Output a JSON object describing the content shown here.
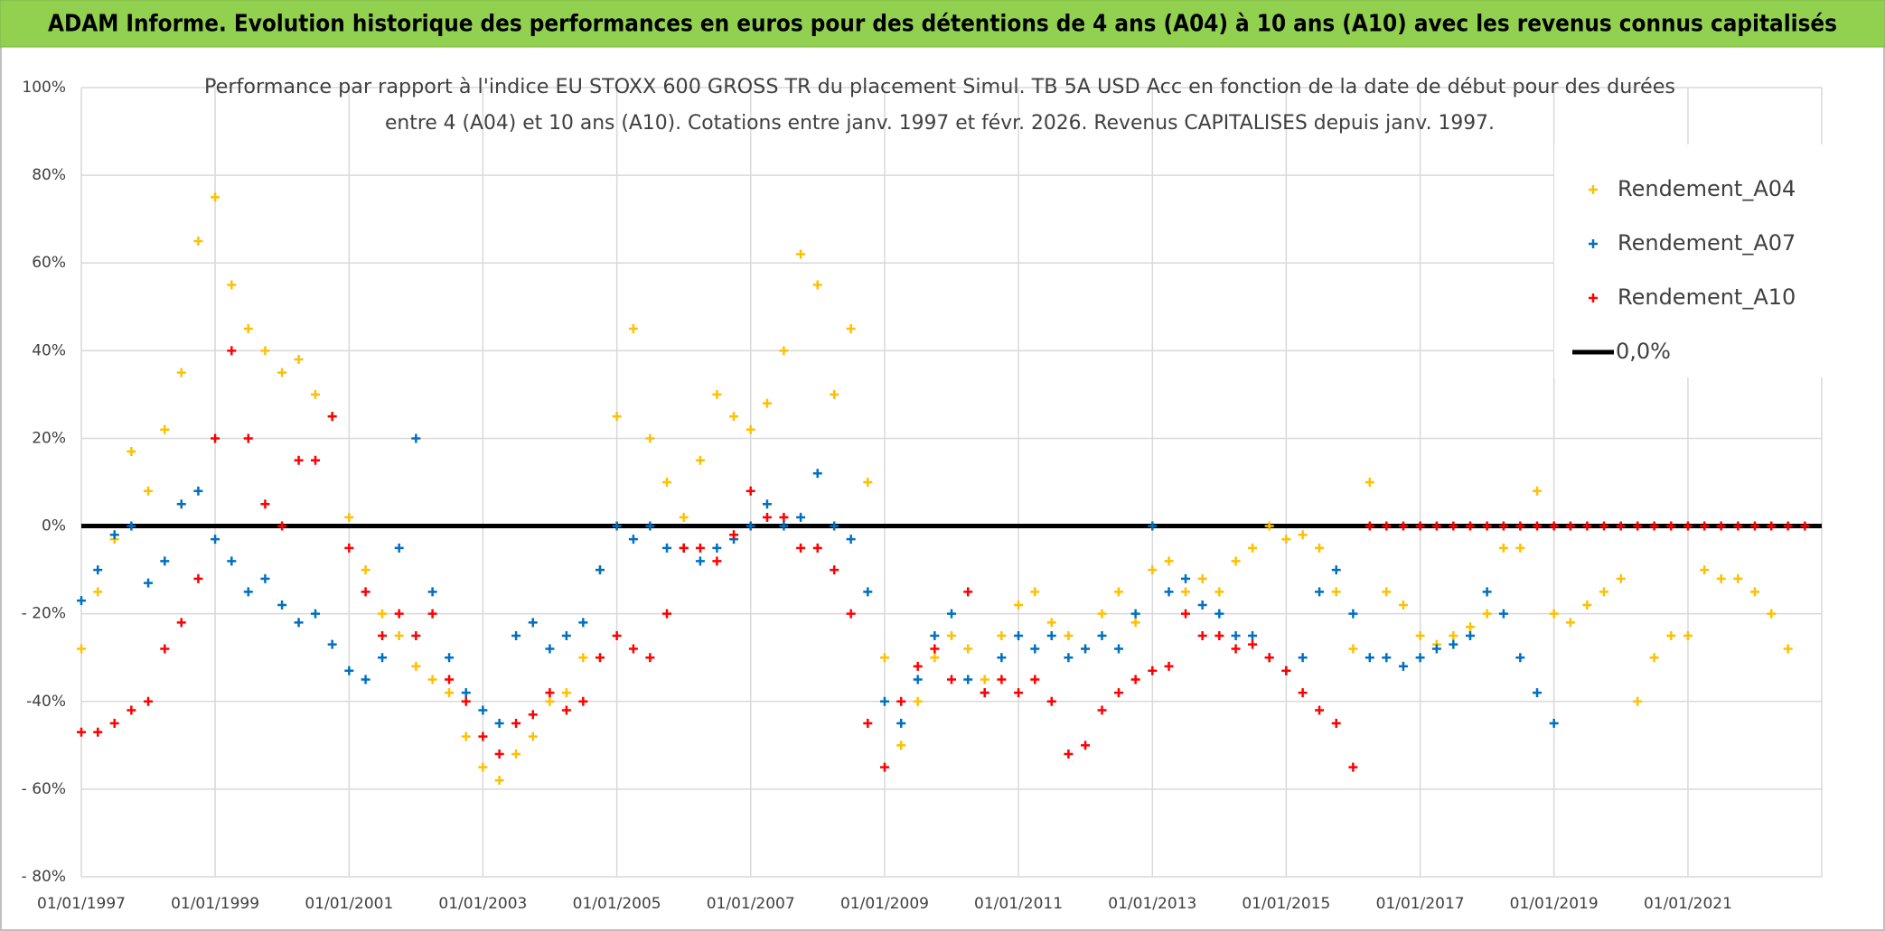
{
  "chart_data": {
    "type": "scatter",
    "title": "ADAM Informe. Evolution historique des performances en euros pour des détentions de 4 ans (A04) à 10 ans (A10) avec les revenus connus capitalisés",
    "subtitle": [
      "Performance par rapport à l'indice EU STOXX 600 GROSS TR  du placement Simul. TB 5A USD Acc en fonction de la date de début pour des durées",
      "entre 4 (A04) et 10 ans (A10). Cotations entre janv. 1997 et févr. 2026. Revenus CAPITALISES depuis janv. 1997."
    ],
    "x": [
      "01/01/1997",
      "01/04/1997",
      "01/07/1997",
      "01/10/1997",
      "01/01/1998",
      "01/04/1998",
      "01/07/1998",
      "01/10/1998",
      "01/01/1999",
      "01/04/1999",
      "01/07/1999",
      "01/10/1999",
      "01/01/2000",
      "01/04/2000",
      "01/07/2000",
      "01/10/2000",
      "01/01/2001",
      "01/04/2001",
      "01/07/2001",
      "01/10/2001",
      "01/01/2002",
      "01/04/2002",
      "01/07/2002",
      "01/10/2002",
      "01/01/2003",
      "01/04/2003",
      "01/07/2003",
      "01/10/2003",
      "01/01/2004",
      "01/04/2004",
      "01/07/2004",
      "01/10/2004",
      "01/01/2005",
      "01/04/2005",
      "01/07/2005",
      "01/10/2005",
      "01/01/2006",
      "01/04/2006",
      "01/07/2006",
      "01/10/2006",
      "01/01/2007",
      "01/04/2007",
      "01/07/2007",
      "01/10/2007",
      "01/01/2008",
      "01/04/2008",
      "01/07/2008",
      "01/10/2008",
      "01/01/2009",
      "01/04/2009",
      "01/07/2009",
      "01/10/2009",
      "01/01/2010",
      "01/04/2010",
      "01/07/2010",
      "01/10/2010",
      "01/01/2011",
      "01/04/2011",
      "01/07/2011",
      "01/10/2011",
      "01/01/2012",
      "01/04/2012",
      "01/07/2012",
      "01/10/2012",
      "01/01/2013",
      "01/04/2013",
      "01/07/2013",
      "01/10/2013",
      "01/01/2014",
      "01/04/2014",
      "01/07/2014",
      "01/10/2014",
      "01/01/2015",
      "01/04/2015",
      "01/07/2015",
      "01/10/2015",
      "01/01/2016",
      "01/04/2016",
      "01/07/2016",
      "01/10/2016",
      "01/01/2017",
      "01/04/2017",
      "01/07/2017",
      "01/10/2017",
      "01/01/2018",
      "01/04/2018",
      "01/07/2018",
      "01/10/2018",
      "01/01/2019",
      "01/04/2019",
      "01/07/2019",
      "01/10/2019",
      "01/01/2020",
      "01/04/2020",
      "01/07/2020",
      "01/10/2020",
      "01/01/2021",
      "01/04/2021",
      "01/07/2021",
      "01/10/2021",
      "01/01/2022",
      "01/04/2022",
      "01/07/2022",
      "01/10/2022"
    ],
    "series": [
      {
        "name": "Rendement_A04",
        "color": "#FFC000",
        "values": [
          -28,
          -15,
          -3,
          17,
          8,
          22,
          35,
          65,
          75,
          55,
          45,
          40,
          35,
          38,
          30,
          25,
          2,
          -10,
          -20,
          -25,
          -32,
          -35,
          -38,
          -48,
          -55,
          -58,
          -52,
          -48,
          -40,
          -38,
          -30,
          -10,
          25,
          45,
          20,
          10,
          2,
          15,
          30,
          25,
          22,
          28,
          40,
          62,
          55,
          30,
          45,
          10,
          -30,
          -50,
          -40,
          -30,
          -25,
          -28,
          -35,
          -25,
          -18,
          -15,
          -22,
          -25,
          -28,
          -20,
          -15,
          -22,
          -10,
          -8,
          -15,
          -12,
          -15,
          -8,
          -5,
          0,
          -3,
          -2,
          -5,
          -15,
          -28,
          10,
          -15,
          -18,
          -25,
          -27,
          -25,
          -23,
          -20,
          -5,
          -5,
          8,
          -20,
          -22,
          -18,
          -15,
          -12,
          -40,
          -30,
          -25,
          -25,
          -10,
          -12,
          -12,
          -15,
          -20,
          -28,
          null
        ]
      },
      {
        "name": "Rendement_A07",
        "color": "#0070C0",
        "values": [
          -17,
          -10,
          -2,
          0,
          -13,
          -8,
          5,
          8,
          -3,
          -8,
          -15,
          -12,
          -18,
          -22,
          -20,
          -27,
          -33,
          -35,
          -30,
          -5,
          20,
          -15,
          -30,
          -38,
          -42,
          -45,
          -25,
          -22,
          -28,
          -25,
          -22,
          -10,
          0,
          -3,
          0,
          -5,
          -5,
          -8,
          -5,
          -3,
          0,
          5,
          0,
          2,
          12,
          0,
          -3,
          -15,
          -40,
          -45,
          -35,
          -25,
          -20,
          -35,
          -38,
          -30,
          -25,
          -28,
          -25,
          -30,
          -28,
          -25,
          -28,
          -20,
          0,
          -15,
          -12,
          -18,
          -20,
          -25,
          -25,
          -30,
          -33,
          -30,
          -15,
          -10,
          -20,
          -30,
          -30,
          -32,
          -30,
          -28,
          -27,
          -25,
          -15,
          -20,
          -30,
          -38,
          -45,
          null,
          null,
          null,
          null,
          null,
          null,
          null,
          null,
          null,
          null,
          null,
          null,
          null,
          null,
          null
        ]
      },
      {
        "name": "Rendement_A10",
        "color": "#FF0000",
        "values": [
          -47,
          -47,
          -45,
          -42,
          -40,
          -28,
          -22,
          -12,
          20,
          40,
          20,
          5,
          0,
          15,
          15,
          25,
          -5,
          -15,
          -25,
          -20,
          -25,
          -20,
          -35,
          -40,
          -48,
          -52,
          -45,
          -43,
          -38,
          -42,
          -40,
          -30,
          -25,
          -28,
          -30,
          -20,
          -5,
          -5,
          -8,
          -2,
          8,
          2,
          2,
          -5,
          -5,
          -10,
          -20,
          -45,
          -55,
          -40,
          -32,
          -28,
          -35,
          -15,
          -38,
          -35,
          -38,
          -35,
          -40,
          -52,
          -50,
          -42,
          -38,
          -35,
          -33,
          -32,
          -20,
          -25,
          -25,
          -28,
          -27,
          -30,
          -33,
          -38,
          -42,
          -45,
          -55,
          0,
          0,
          0,
          0,
          0,
          0,
          0,
          0,
          0,
          0,
          0,
          0,
          0,
          0,
          0,
          0,
          0,
          0,
          0,
          0,
          0,
          0,
          0,
          0,
          0,
          0,
          0
        ]
      }
    ],
    "reference_line": {
      "name": "0,0%",
      "value": 0,
      "color": "#000000"
    },
    "xlim": [
      "01/01/1997",
      "01/01/2023"
    ],
    "xticks": [
      "01/01/1997",
      "01/01/1999",
      "01/01/2001",
      "01/01/2003",
      "01/01/2005",
      "01/01/2007",
      "01/01/2009",
      "01/01/2011",
      "01/01/2013",
      "01/01/2015",
      "01/01/2017",
      "01/01/2019",
      "01/01/2021"
    ],
    "ylim": [
      -80,
      100
    ],
    "yticks": [
      {
        "value": -80,
        "label": "- 80%"
      },
      {
        "value": -60,
        "label": "- 60%"
      },
      {
        "value": -40,
        "label": "-40%"
      },
      {
        "value": -20,
        "label": "- 20%"
      },
      {
        "value": 0,
        "label": "0%"
      },
      {
        "value": 20,
        "label": "20%"
      },
      {
        "value": 40,
        "label": "40%"
      },
      {
        "value": 60,
        "label": "60%"
      },
      {
        "value": 80,
        "label": "80%"
      },
      {
        "value": 100,
        "label": "100%"
      }
    ],
    "grid": true,
    "legend": "upper right"
  }
}
